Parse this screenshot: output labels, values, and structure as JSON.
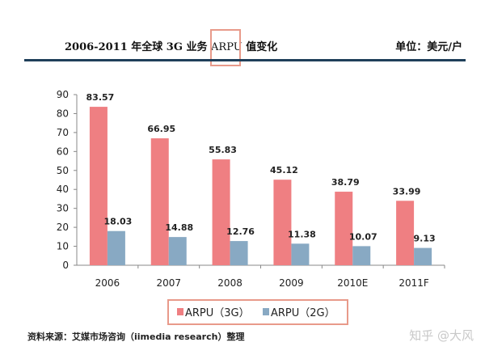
{
  "title": {
    "prefix": "2006-2011 年全球 3G 业务 ",
    "highlight": "ARPU",
    "suffix": " 值变化",
    "unit": "单位：美元/户"
  },
  "source": "资料来源：艾媒市场咨询（iimedia research）整理",
  "watermark": "知乎 @大风",
  "colors": {
    "series_3g": "#ef7f82",
    "series_2g": "#88a9c3",
    "highlight_box": "#e89a8a",
    "rule": "#1f3f5a"
  },
  "chart_data": {
    "type": "bar",
    "categories": [
      "2006",
      "2007",
      "2008",
      "2009",
      "2010E",
      "2011F"
    ],
    "series": [
      {
        "name": "ARPU（3G）",
        "values": [
          83.57,
          66.95,
          55.83,
          45.12,
          38.79,
          33.99
        ]
      },
      {
        "name": "ARPU（2G）",
        "values": [
          18.03,
          14.88,
          12.76,
          11.38,
          10.07,
          9.13
        ]
      }
    ],
    "ylim": [
      0,
      90
    ],
    "yticks": [
      0,
      10,
      20,
      30,
      40,
      50,
      60,
      70,
      80,
      90
    ],
    "legend": "bottom",
    "grid": false
  }
}
